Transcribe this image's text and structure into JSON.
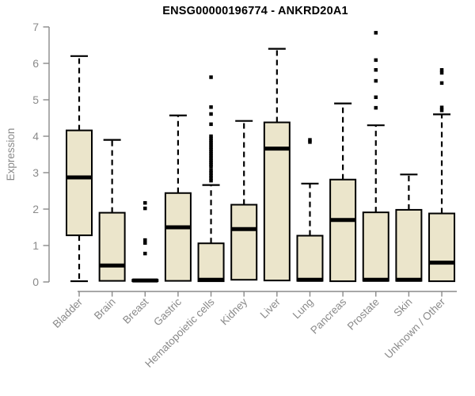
{
  "chart_data": {
    "type": "boxplot",
    "title": "ENSG00000196774 - ANKRD20A1",
    "ylabel": "Expression",
    "xlabel": "",
    "ylim": [
      0,
      7
    ],
    "yticks": [
      0,
      1,
      2,
      3,
      4,
      5,
      6,
      7
    ],
    "grid": false,
    "legend": "none",
    "axis_color": "#8a8a8a",
    "box_fill": "#ebe5cb",
    "box_stroke": "#000000",
    "outlier_color": "#000000",
    "categories": [
      "Bladder",
      "Brain",
      "Breast",
      "Gastric",
      "Hematopoietic cells",
      "Kidney",
      "Liver",
      "Lung",
      "Pancreas",
      "Prostate",
      "Skin",
      "Unknown / Other"
    ],
    "boxes": [
      {
        "category": "Bladder",
        "low": 0.02,
        "q1": 1.28,
        "median": 2.87,
        "q3": 4.16,
        "high": 6.2,
        "outliers": []
      },
      {
        "category": "Brain",
        "low": 0.03,
        "q1": 0.03,
        "median": 0.45,
        "q3": 1.9,
        "high": 3.9,
        "outliers": []
      },
      {
        "category": "Breast",
        "low": 0.02,
        "q1": 0.02,
        "median": 0.04,
        "q3": 0.06,
        "high": 0.06,
        "outliers": [
          2.17,
          2.02,
          1.15,
          1.07,
          0.78
        ]
      },
      {
        "category": "Gastric",
        "low": 0.03,
        "q1": 0.03,
        "median": 1.5,
        "q3": 2.44,
        "high": 4.57,
        "outliers": []
      },
      {
        "category": "Hematopoietic cells",
        "low": 0.02,
        "q1": 0.02,
        "median": 0.06,
        "q3": 1.06,
        "high": 2.66,
        "outliers": [
          5.62,
          4.8,
          4.61,
          4.33,
          4.0,
          3.94,
          3.88,
          3.82,
          3.76,
          3.7,
          3.64,
          3.58,
          3.52,
          3.46,
          3.4,
          3.34,
          3.28,
          3.22,
          3.16,
          3.06,
          2.99,
          2.92,
          2.85,
          2.78
        ]
      },
      {
        "category": "Kidney",
        "low": 0.06,
        "q1": 0.06,
        "median": 1.45,
        "q3": 2.12,
        "high": 4.42,
        "outliers": []
      },
      {
        "category": "Liver",
        "low": 0.04,
        "q1": 0.04,
        "median": 3.66,
        "q3": 4.38,
        "high": 6.4,
        "outliers": []
      },
      {
        "category": "Lung",
        "low": 0.03,
        "q1": 0.03,
        "median": 0.06,
        "q3": 1.27,
        "high": 2.7,
        "outliers": [
          3.9,
          3.84
        ]
      },
      {
        "category": "Pancreas",
        "low": 0.02,
        "q1": 0.02,
        "median": 1.7,
        "q3": 2.81,
        "high": 4.9,
        "outliers": []
      },
      {
        "category": "Prostate",
        "low": 0.03,
        "q1": 0.03,
        "median": 0.06,
        "q3": 1.91,
        "high": 4.3,
        "outliers": [
          6.84,
          6.09,
          5.82,
          5.52,
          5.07,
          4.78
        ]
      },
      {
        "category": "Skin",
        "low": 0.03,
        "q1": 0.03,
        "median": 0.06,
        "q3": 1.98,
        "high": 2.95,
        "outliers": []
      },
      {
        "category": "Unknown / Other",
        "low": 0.02,
        "q1": 0.02,
        "median": 0.53,
        "q3": 1.88,
        "high": 4.6,
        "outliers": [
          5.82,
          5.74,
          5.46,
          4.79,
          4.71
        ]
      }
    ]
  }
}
